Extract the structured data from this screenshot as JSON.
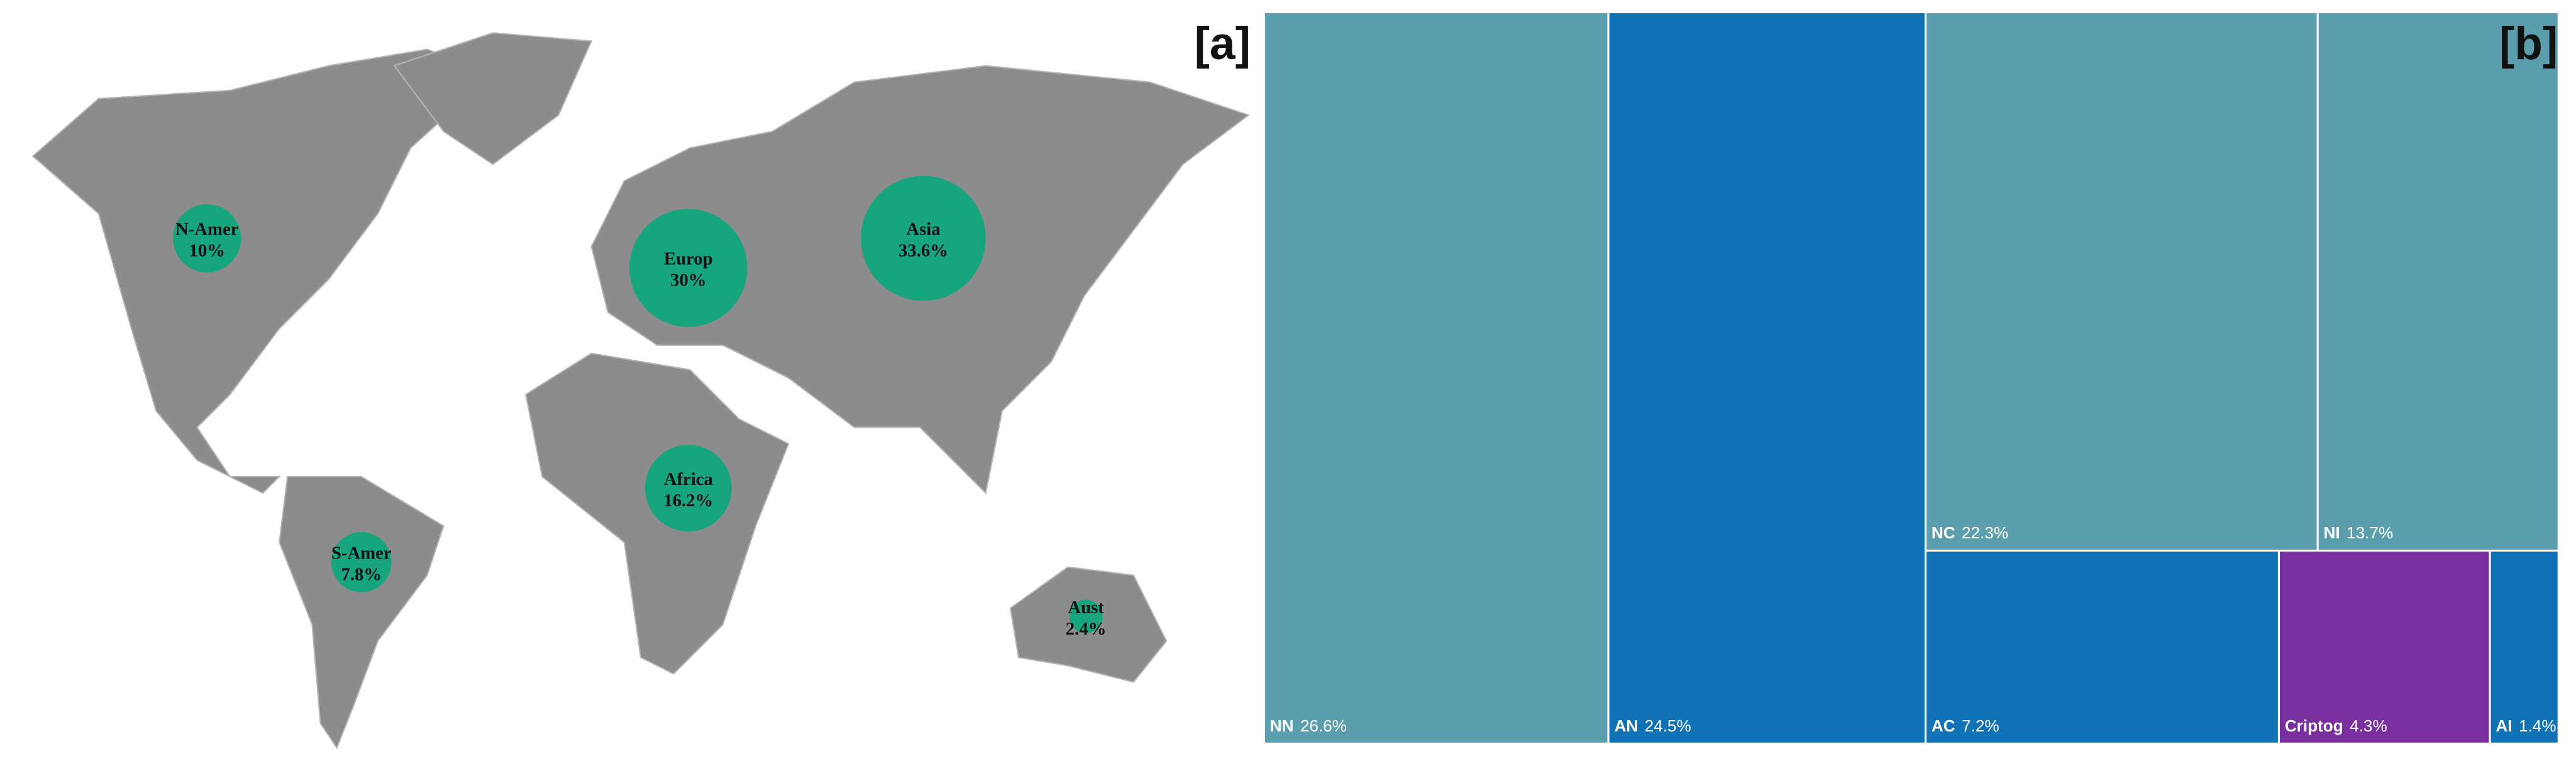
{
  "chart_data": [
    {
      "type": "bubble",
      "label": "[a]",
      "categories": [
        "N-Amer",
        "Europ",
        "Asia",
        "Africa",
        "S-Amer",
        "Aust"
      ],
      "values": [
        10,
        30,
        33.6,
        16.2,
        7.8,
        2.4
      ],
      "value_labels": [
        "10%",
        "30%",
        "33.6%",
        "16.2%",
        "7.8%",
        "2.4%"
      ],
      "color": "#17a57e"
    },
    {
      "type": "treemap",
      "label": "[b]",
      "categories": [
        "NN",
        "AN",
        "NC",
        "NI",
        "AC",
        "Criptog",
        "AI"
      ],
      "values": [
        26.6,
        24.5,
        22.3,
        13.7,
        7.2,
        4.3,
        1.4
      ],
      "value_labels": [
        "26.6%",
        "24.5%",
        "22.3%",
        "13.7%",
        "7.2%",
        "4.3%",
        "1.4%"
      ],
      "colors": [
        "#5b9fae",
        "#1172b6",
        "#5b9fae",
        "#5b9fae",
        "#1172b6",
        "#7a2f9f",
        "#1172b6"
      ]
    }
  ]
}
